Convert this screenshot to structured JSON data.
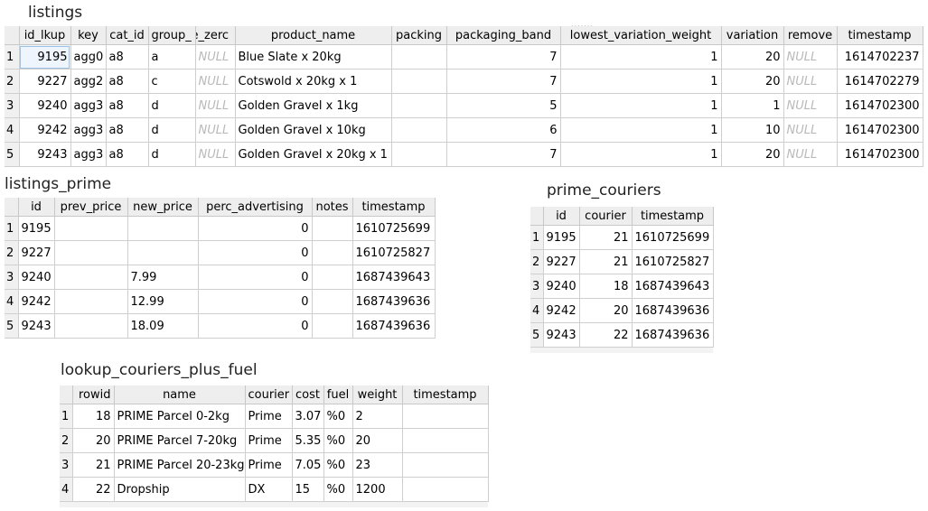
{
  "listings": {
    "title": "listings",
    "columns": [
      "id_lkup",
      "key",
      "cat_id",
      "group_",
      "e_zerc",
      "product_name",
      "packing",
      "packaging_band",
      "lowest_variation_weight",
      "variation",
      "remove",
      "timestamp"
    ],
    "rows": [
      [
        "1",
        "9195",
        "agg0",
        "a8",
        "a",
        "NULL",
        "Blue Slate x 20kg",
        "",
        "7",
        "1",
        "20",
        "NULL",
        "1614702237"
      ],
      [
        "2",
        "9227",
        "agg2",
        "a8",
        "c",
        "NULL",
        "Cotswold x 20kg x 1",
        "",
        "7",
        "1",
        "20",
        "NULL",
        "1614702279"
      ],
      [
        "3",
        "9240",
        "agg3",
        "a8",
        "d",
        "NULL",
        "Golden Gravel x 1kg",
        "",
        "5",
        "1",
        "1",
        "NULL",
        "1614702300"
      ],
      [
        "4",
        "9242",
        "agg3",
        "a8",
        "d",
        "NULL",
        "Golden Gravel x 10kg",
        "",
        "6",
        "1",
        "10",
        "NULL",
        "1614702300"
      ],
      [
        "5",
        "9243",
        "agg3",
        "a8",
        "d",
        "NULL",
        "Golden Gravel x 20kg x 1",
        "",
        "7",
        "1",
        "20",
        "NULL",
        "1614702300"
      ]
    ]
  },
  "listings_prime": {
    "title": "listings_prime",
    "columns": [
      "id",
      "prev_price",
      "new_price",
      "perc_advertising",
      "notes",
      "timestamp"
    ],
    "rows": [
      [
        "1",
        "9195",
        "",
        "",
        "0",
        "",
        "1610725699"
      ],
      [
        "2",
        "9227",
        "",
        "",
        "0",
        "",
        "1610725827"
      ],
      [
        "3",
        "9240",
        "",
        "7.99",
        "0",
        "",
        "1687439643"
      ],
      [
        "4",
        "9242",
        "",
        "12.99",
        "0",
        "",
        "1687439636"
      ],
      [
        "5",
        "9243",
        "",
        "18.09",
        "0",
        "",
        "1687439636"
      ]
    ]
  },
  "prime_couriers": {
    "title": "prime_couriers",
    "columns": [
      "id",
      "courier",
      "timestamp"
    ],
    "rows": [
      [
        "1",
        "9195",
        "21",
        "1610725699"
      ],
      [
        "2",
        "9227",
        "21",
        "1610725827"
      ],
      [
        "3",
        "9240",
        "18",
        "1687439643"
      ],
      [
        "4",
        "9242",
        "20",
        "1687439636"
      ],
      [
        "5",
        "9243",
        "22",
        "1687439636"
      ]
    ]
  },
  "lookup_couriers_plus_fuel": {
    "title": "lookup_couriers_plus_fuel",
    "columns": [
      "rowid",
      "name",
      "courier",
      "cost",
      "fuel",
      "weight",
      "timestamp"
    ],
    "rows": [
      [
        "1",
        "18",
        "PRIME Parcel 0-2kg",
        "Prime",
        "3.07",
        "%0",
        "2",
        ""
      ],
      [
        "2",
        "20",
        "PRIME Parcel 7-20kg",
        "Prime",
        "5.35",
        "%0",
        "20",
        ""
      ],
      [
        "3",
        "21",
        "PRIME Parcel 20-23kg",
        "Prime",
        "7.05",
        "%0",
        "23",
        ""
      ],
      [
        "4",
        "22",
        "Dropship",
        "DX",
        "15",
        "%0",
        "1200",
        ""
      ]
    ]
  }
}
